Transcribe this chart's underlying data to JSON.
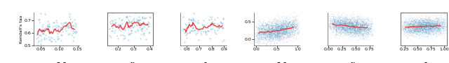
{
  "panels": [
    {
      "label_prefix": "(a) TAC ",
      "label_bold": "EoS",
      "xlabel_range": [
        0.03,
        0.155
      ],
      "ylabel_range": [
        0.5,
        0.76
      ],
      "x_ticks": [
        0.05,
        0.1,
        0.15
      ],
      "yticks": [
        0.5,
        0.6,
        0.7
      ],
      "scatter_n": 130,
      "scatter_seed": 42,
      "has_border": false,
      "is_dense": false
    },
    {
      "label_prefix": "(b) TAC ",
      "label_bold": "Abs",
      "xlabel_range": [
        0.13,
        0.42
      ],
      "ylabel_range": [
        0.575,
        0.725
      ],
      "x_ticks": [
        0.2,
        0.3,
        0.4
      ],
      "yticks": [],
      "scatter_n": 130,
      "scatter_seed": 7,
      "has_border": true,
      "is_dense": false
    },
    {
      "label_prefix": "(c) TAC ",
      "label_bold": "Cov",
      "xlabel_range": [
        0.55,
        0.92
      ],
      "ylabel_range": [
        0.575,
        0.725
      ],
      "x_ticks": [
        0.6,
        0.7,
        0.8,
        0.9
      ],
      "yticks": [],
      "scatter_n": 110,
      "scatter_seed": 13,
      "has_border": false,
      "is_dense": false
    },
    {
      "label_prefix": "(d) CNNDM ",
      "label_bold": "EoS",
      "xlabel_range": [
        -0.05,
        1.05
      ],
      "ylabel_range": [
        -0.18,
        0.75
      ],
      "x_ticks": [
        0.0,
        0.5,
        1.0
      ],
      "yticks": [
        0.0,
        0.5
      ],
      "scatter_n": 3000,
      "scatter_seed": 21,
      "has_border": false,
      "is_dense": true
    },
    {
      "label_prefix": "(e) CNNDM ",
      "label_bold": "Abs",
      "xlabel_range": [
        -0.02,
        0.82
      ],
      "ylabel_range": [
        0.25,
        0.75
      ],
      "x_ticks": [
        0.0,
        0.25,
        0.5,
        0.75
      ],
      "yticks": [],
      "scatter_n": 3000,
      "scatter_seed": 55,
      "has_border": false,
      "is_dense": true
    },
    {
      "label_prefix": "(f) CNNDM ",
      "label_bold": "Cov",
      "xlabel_range": [
        0.18,
        1.05
      ],
      "ylabel_range": [
        0.25,
        0.75
      ],
      "x_ticks": [
        0.25,
        0.5,
        0.75,
        1.0
      ],
      "yticks": [],
      "scatter_n": 3000,
      "scatter_seed": 77,
      "has_border": true,
      "is_dense": true
    }
  ],
  "scatter_color_sparse": "#6baed6",
  "scatter_color_dense": "#2171b5",
  "trend_color": "#e84040",
  "ylabel": "Kendall's tau",
  "figure_bg": "#ffffff"
}
